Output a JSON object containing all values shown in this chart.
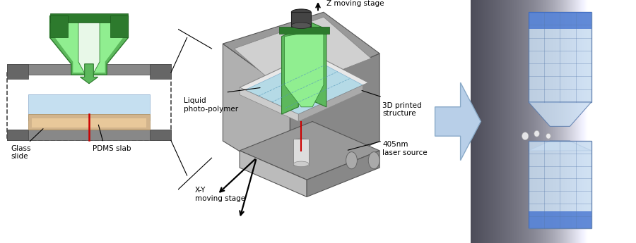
{
  "figsize": [
    9.0,
    3.45
  ],
  "dpi": 100,
  "bg_color": "#ffffff",
  "labels": {
    "glass_slide": "Glass\nslide",
    "pdms_slab": "PDMS slab",
    "liquid_photo": "Liquid\nphoto-polymer",
    "printed_structure": "3D printed\nstructure",
    "z_stage": "Z moving stage",
    "xy_stage": "X-Y\nmoving stage",
    "laser": "405nm\nlaser source"
  },
  "green_outer": "#3a8a3a",
  "green_light": "#90ee90",
  "green_mid": "#5dc05d",
  "green_dark": "#2d7a2d",
  "gray_dark": "#555555",
  "gray_med": "#888888",
  "gray_light": "#aaaaaa",
  "gray_lightest": "#cccccc",
  "blue_tray": "#add8e6",
  "blue_arrow": "#b0c8e8",
  "orange_layer": "#d2b48c",
  "red_laser": "#cc0000",
  "black_body": "#333333"
}
